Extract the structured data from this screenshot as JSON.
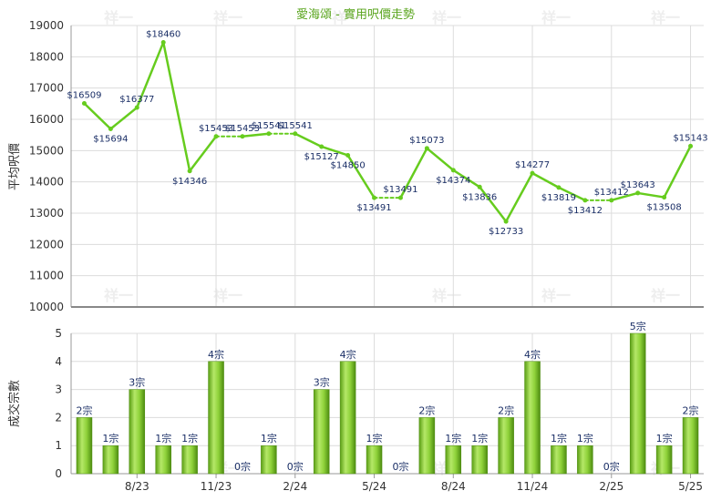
{
  "chart_data": [
    {
      "type": "line",
      "title": "愛海頌 - 實用呎價走勢",
      "ylabel": "平均呎價",
      "ylim": [
        10000,
        19000
      ],
      "yticks": [
        10000,
        11000,
        12000,
        13000,
        14000,
        15000,
        16000,
        17000,
        18000,
        19000
      ],
      "grid": true,
      "series": [
        {
          "values": [
            16509,
            15694,
            16377,
            18460,
            14346,
            15453,
            15453,
            15541,
            15541,
            15127,
            14850,
            13491,
            13491,
            15073,
            14374,
            13836,
            12733,
            14277,
            13819,
            13412,
            13412,
            13643,
            13508,
            15143
          ],
          "labels": [
            "$16509",
            "$15694",
            "$16377",
            "$18460",
            "$14346",
            "$15453",
            "$15453",
            "$15541",
            "$15541",
            "$15127",
            "$14850",
            "$13491",
            "$13491",
            "$15073",
            "$14374",
            "$13836",
            "$12733",
            "$14277",
            "$13819",
            "$13412",
            "$13412",
            "$13643",
            "$13508",
            "$15143"
          ],
          "carried_forward": [
            false,
            false,
            false,
            false,
            false,
            false,
            true,
            false,
            true,
            false,
            false,
            false,
            true,
            false,
            false,
            false,
            false,
            false,
            false,
            false,
            true,
            false,
            false,
            false
          ],
          "color": "#66cc1e"
        }
      ]
    },
    {
      "type": "bar",
      "ylabel": "成交宗數",
      "ylim": [
        0,
        5
      ],
      "yticks": [
        0,
        1,
        2,
        3,
        4,
        5
      ],
      "grid": true,
      "categories": [
        "8/23",
        "11/23",
        "2/24",
        "5/24",
        "8/24",
        "11/24",
        "2/25",
        "5/25"
      ],
      "values": [
        2,
        1,
        3,
        1,
        1,
        4,
        0,
        1,
        0,
        3,
        4,
        1,
        0,
        2,
        1,
        1,
        2,
        4,
        1,
        1,
        0,
        5,
        1,
        2
      ],
      "labels": [
        "2宗",
        "1宗",
        "3宗",
        "1宗",
        "1宗",
        "4宗",
        "0宗",
        "1宗",
        "0宗",
        "3宗",
        "4宗",
        "1宗",
        "0宗",
        "2宗",
        "1宗",
        "1宗",
        "2宗",
        "4宗",
        "1宗",
        "1宗",
        "0宗",
        "5宗",
        "1宗",
        "2宗"
      ],
      "color": "#7cc22a"
    }
  ],
  "watermark": "祥一"
}
